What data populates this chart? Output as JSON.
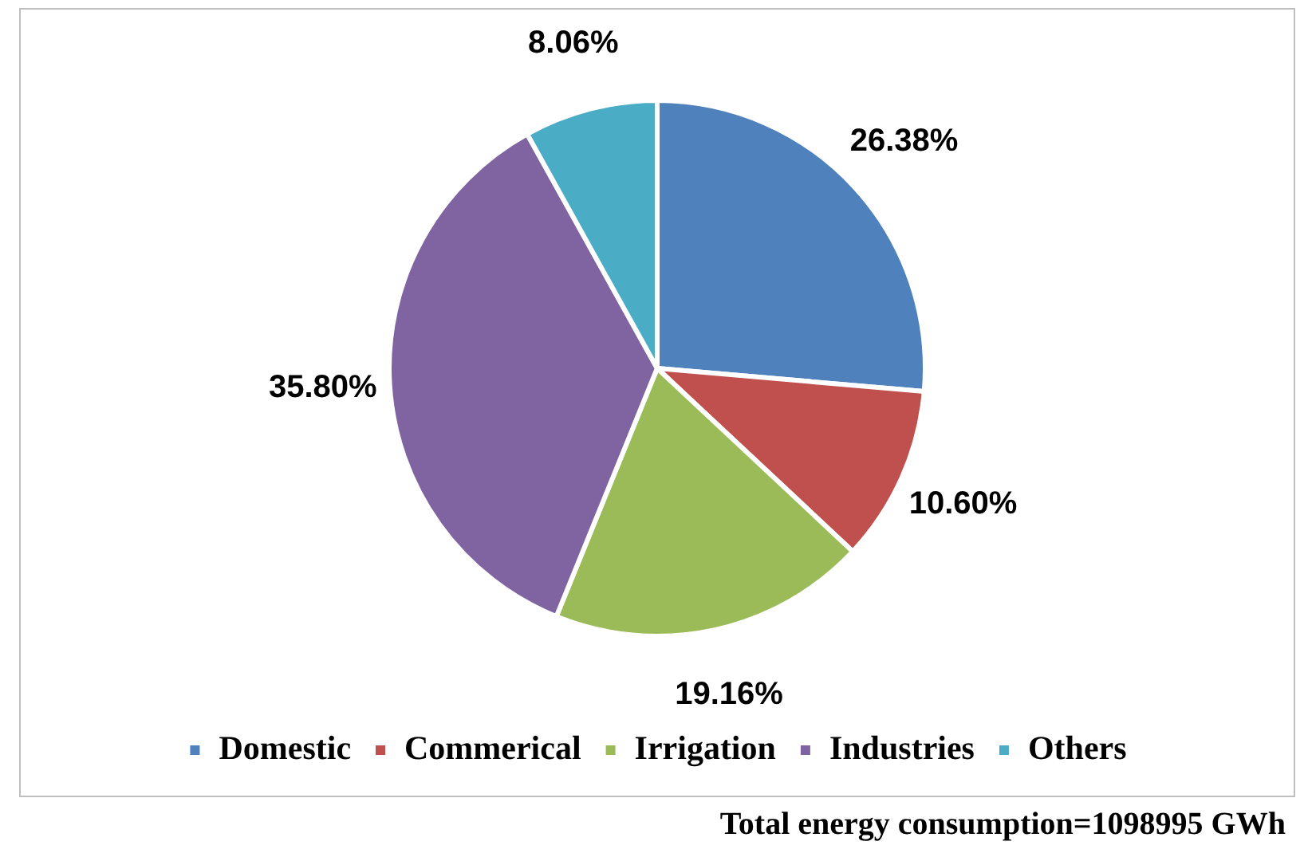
{
  "chart_data": {
    "type": "pie",
    "categories": [
      "Domestic",
      "Commerical",
      "Irrigation",
      "Industries",
      "Others"
    ],
    "values": [
      26.38,
      10.6,
      19.16,
      35.8,
      8.06
    ],
    "colors": [
      "#4f81bd",
      "#c0504d",
      "#9bbb59",
      "#8064a2",
      "#4bacc6"
    ],
    "value_labels": [
      "26.38%",
      "10.60%",
      "19.16%",
      "35.80%",
      "8.06%"
    ],
    "legend": "bottom",
    "annotations": [
      "Total energy consumption=1098995 GWh"
    ]
  }
}
